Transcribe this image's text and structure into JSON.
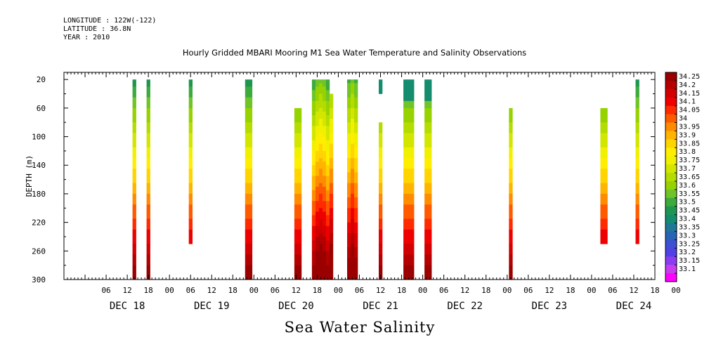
{
  "header": {
    "longitude": "LONGITUDE : 122W(-122)",
    "latitude": "LATITUDE : 36.8N",
    "year": "YEAR : 2010"
  },
  "footer_title": "Sea Water Salinity",
  "chart_data": {
    "type": "heatmap",
    "title": "Hourly Gridded MBARI Mooring M1 Sea Water Temperature and Salinity Observations",
    "xlabel": "",
    "ylabel": "DEPTH (m)",
    "x_units": "hours since DEC 17 18:00",
    "xlim": [
      0,
      168
    ],
    "ylim": [
      300,
      10
    ],
    "y_ticks": [
      20,
      60,
      100,
      140,
      180,
      220,
      260,
      300
    ],
    "x_hour_ticks": [
      "06",
      "12",
      "18",
      "00",
      "06",
      "12",
      "18",
      "00",
      "06",
      "12",
      "18",
      "00",
      "06",
      "12",
      "18",
      "00",
      "06",
      "12",
      "18",
      "00",
      "06",
      "12",
      "18",
      "00",
      "06",
      "12",
      "18",
      "00"
    ],
    "x_day_labels": [
      "DEC 18",
      "DEC 19",
      "DEC 20",
      "DEC 21",
      "DEC 22",
      "DEC 23",
      "DEC 24"
    ],
    "grid": false,
    "legend": "right colorbar",
    "colorbar": {
      "levels": [
        "34.25",
        "34.2",
        "34.15",
        "34.1",
        "34.05",
        "34",
        "33.95",
        "33.9",
        "33.85",
        "33.8",
        "33.75",
        "33.7",
        "33.65",
        "33.6",
        "33.55",
        "33.5",
        "33.45",
        "33.4",
        "33.35",
        "33.3",
        "33.25",
        "33.2",
        "33.15",
        "33.1"
      ],
      "colors": [
        "#9a0000",
        "#b40000",
        "#d20000",
        "#ee0000",
        "#ff2a00",
        "#ff5a00",
        "#ff8c00",
        "#ffb400",
        "#ffd400",
        "#ffee00",
        "#f0f000",
        "#d2e600",
        "#b4dc00",
        "#96d200",
        "#6ec428",
        "#3caa3c",
        "#1e9650",
        "#148c6e",
        "#1e7896",
        "#2864b4",
        "#3c50d2",
        "#5040e6",
        "#8c3cf0",
        "#c83cf0",
        "#ff00ff"
      ]
    },
    "profiles": [
      {
        "x0": 19.5,
        "x1": 20.5,
        "top": 20,
        "bottom": 300,
        "pattern": "standard"
      },
      {
        "x0": 23.5,
        "x1": 24.5,
        "top": 20,
        "bottom": 300,
        "pattern": "standard"
      },
      {
        "x0": 35.5,
        "x1": 36.5,
        "top": 20,
        "bottom": 250,
        "pattern": "standard"
      },
      {
        "x0": 51.5,
        "x1": 53.5,
        "top": 20,
        "bottom": 300,
        "pattern": "standard"
      },
      {
        "x0": 65.5,
        "x1": 67.5,
        "top": 60,
        "bottom": 300,
        "pattern": "standard"
      },
      {
        "x0": 70.5,
        "x1": 75.5,
        "top": 20,
        "bottom": 300,
        "pattern": "bulge"
      },
      {
        "x0": 75.5,
        "x1": 76.5,
        "top": 40,
        "bottom": 300,
        "pattern": "bulge"
      },
      {
        "x0": 80.5,
        "x1": 83.5,
        "top": 20,
        "bottom": 300,
        "pattern": "bulge"
      },
      {
        "x0": 89.5,
        "x1": 90.5,
        "top": 20,
        "bottom": 40,
        "pattern": "teal"
      },
      {
        "x0": 89.5,
        "x1": 90.5,
        "top": 80,
        "bottom": 300,
        "pattern": "standard"
      },
      {
        "x0": 96.5,
        "x1": 99.5,
        "top": 20,
        "bottom": 300,
        "pattern": "teal-top"
      },
      {
        "x0": 102.5,
        "x1": 104.5,
        "top": 20,
        "bottom": 300,
        "pattern": "teal-top"
      },
      {
        "x0": 126.5,
        "x1": 127.5,
        "top": 60,
        "bottom": 300,
        "pattern": "standard"
      },
      {
        "x0": 152.5,
        "x1": 154.5,
        "top": 60,
        "bottom": 250,
        "pattern": "standard"
      },
      {
        "x0": 162.5,
        "x1": 163.5,
        "top": 20,
        "bottom": 250,
        "pattern": "standard"
      }
    ]
  }
}
